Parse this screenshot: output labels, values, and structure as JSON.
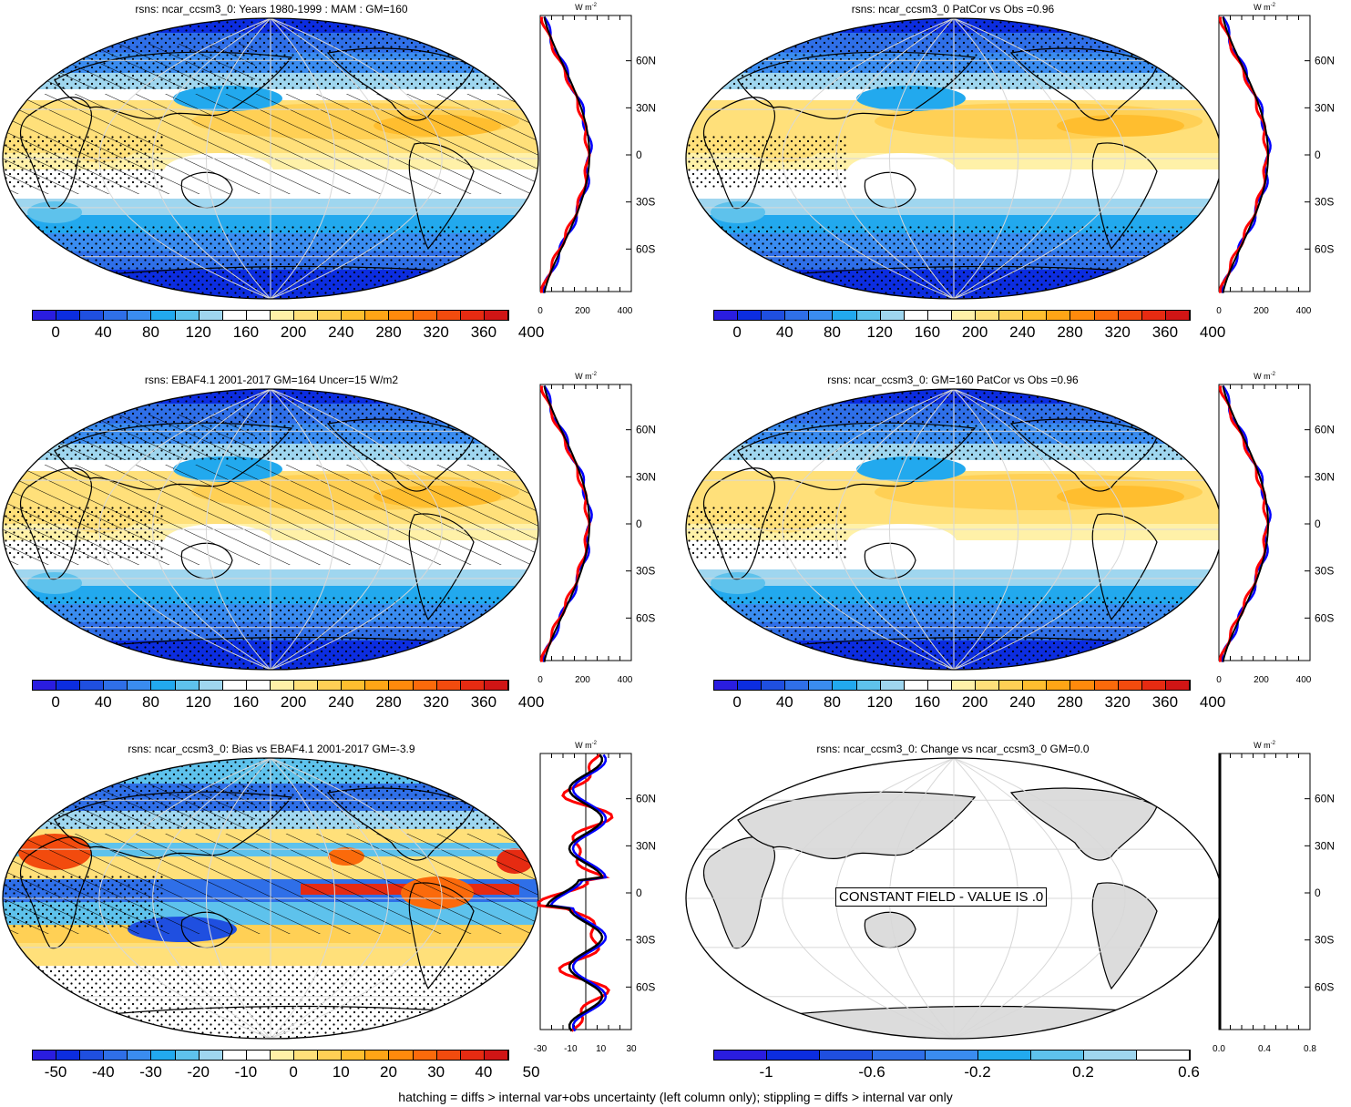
{
  "panels": [
    {
      "id": "p1",
      "title": "rsns: ncar_ccsm3_0: Years 1980-1999 : MAM : GM=160",
      "kind": "clim",
      "hatch": true
    },
    {
      "id": "p2",
      "title": "rsns: ncar_ccsm3_0 PatCor vs Obs =0.96",
      "kind": "clim",
      "hatch": false
    },
    {
      "id": "p3",
      "title": "rsns: EBAF4.1 2001-2017 GM=164 Uncer=15 W/m2",
      "kind": "clim",
      "hatch": true
    },
    {
      "id": "p4",
      "title": "rsns: ncar_ccsm3_0: GM=160 PatCor vs Obs =0.96",
      "kind": "clim",
      "hatch": false
    },
    {
      "id": "p5",
      "title": "rsns: ncar_ccsm3_0: Bias vs EBAF4.1 2001-2017 GM=-3.9",
      "kind": "bias",
      "hatch": true
    },
    {
      "id": "p6",
      "title": "rsns: ncar_ccsm3_0: Change vs ncar_ccsm3_0 GM=0.0",
      "kind": "const",
      "hatch": false
    }
  ],
  "colorbars": {
    "clim": {
      "labels": [
        "0",
        "40",
        "80",
        "120",
        "160",
        "200",
        "240",
        "280",
        "320",
        "360",
        "400"
      ],
      "colors": [
        "#2a1de0",
        "#0c2de0",
        "#1f4fe0",
        "#2f6fe8",
        "#3a8cf0",
        "#22a9ee",
        "#5ec2ec",
        "#9fd6ef",
        "#ffffff",
        "#ffffff",
        "#fff1a8",
        "#ffe07a",
        "#ffd055",
        "#ffbe2f",
        "#ffa516",
        "#ff8a0c",
        "#fb6a0b",
        "#f24b0e",
        "#e62b12",
        "#d01515"
      ]
    },
    "bias": {
      "labels": [
        "-50",
        "-40",
        "-30",
        "-20",
        "-10",
        "0",
        "10",
        "20",
        "30",
        "40",
        "50"
      ],
      "colors": [
        "#2a1de0",
        "#0c2de0",
        "#1f4fe0",
        "#2f6fe8",
        "#3a8cf0",
        "#22a9ee",
        "#5ec2ec",
        "#9fd6ef",
        "#ffffff",
        "#ffffff",
        "#fff1a8",
        "#ffe07a",
        "#ffd055",
        "#ffbe2f",
        "#ffa516",
        "#ff8a0c",
        "#fb6a0b",
        "#f24b0e",
        "#e62b12",
        "#d01515"
      ]
    },
    "change": {
      "labels": [
        "-1",
        "-0.6",
        "-0.2",
        "0.2",
        "0.6"
      ],
      "colors": [
        "#2a1de0",
        "#0c2de0",
        "#1f4fe0",
        "#2f6fe8",
        "#3a8cf0",
        "#22a9ee",
        "#5ec2ec",
        "#9fd6ef",
        "#ffffff"
      ]
    }
  },
  "profile": {
    "units": "W m",
    "units_sup": "-2",
    "lat_labels": [
      "60N",
      "30N",
      "0",
      "30S",
      "60S"
    ],
    "xticks_clim": [
      "0",
      "200",
      "400"
    ],
    "xticks_bias": [
      "-30",
      "-10",
      "10",
      "30"
    ],
    "xticks_change": [
      "0.0",
      "0.4",
      "0.8"
    ]
  },
  "constant_field_text": "CONSTANT FIELD - VALUE IS .0",
  "footer": "hatching = diffs > internal var+obs uncertainty (left column only); stippling = diffs > internal var only",
  "colors": {
    "model_line": "#000000",
    "obs_line": "#ff0000",
    "other_line": "#0000ff",
    "land": "#dcdcdc"
  }
}
